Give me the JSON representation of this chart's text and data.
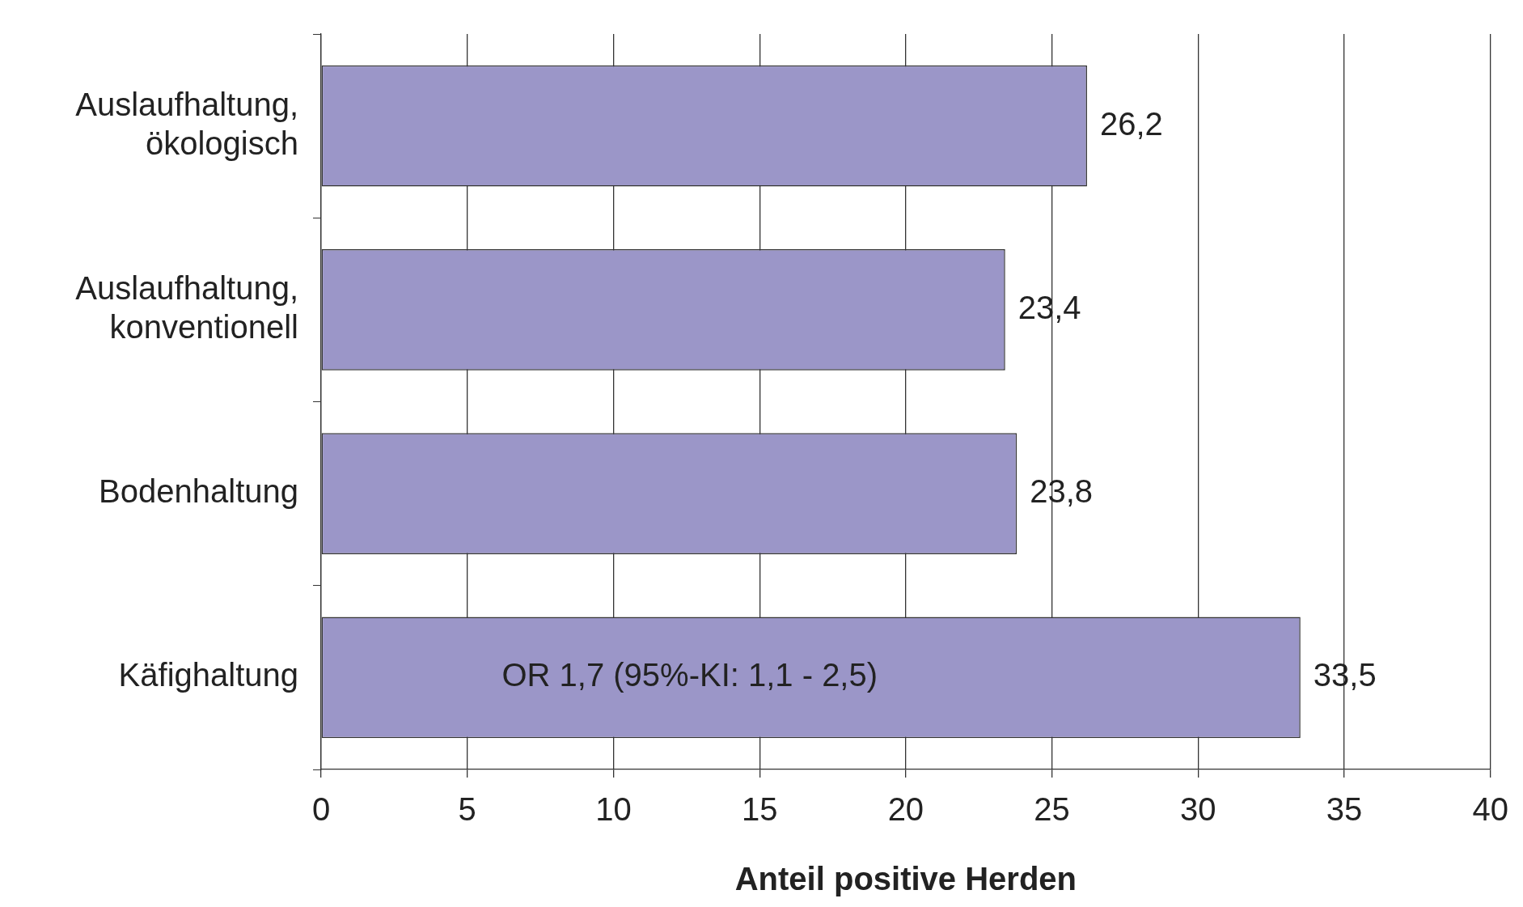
{
  "chart_data": {
    "type": "bar",
    "orientation": "horizontal",
    "xlabel": "Anteil positive Herden",
    "categories": [
      "Auslaufhaltung, ökologisch",
      "Auslaufhaltung, konventionell",
      "Bodenhaltung",
      "Käfighaltung"
    ],
    "values": [
      26.2,
      23.4,
      23.8,
      33.5
    ],
    "color": "#9b96c8",
    "value_labels": [
      "26,2",
      "23,4",
      "23,8",
      "33,5"
    ],
    "annotations": [
      "OR 1,7 (95%-KI: 1,1 - 2,5)"
    ],
    "xlim": [
      0,
      40
    ],
    "xticks": [
      0,
      5,
      10,
      15,
      20,
      25,
      30,
      35,
      40
    ],
    "grid": "x",
    "legend": false
  }
}
